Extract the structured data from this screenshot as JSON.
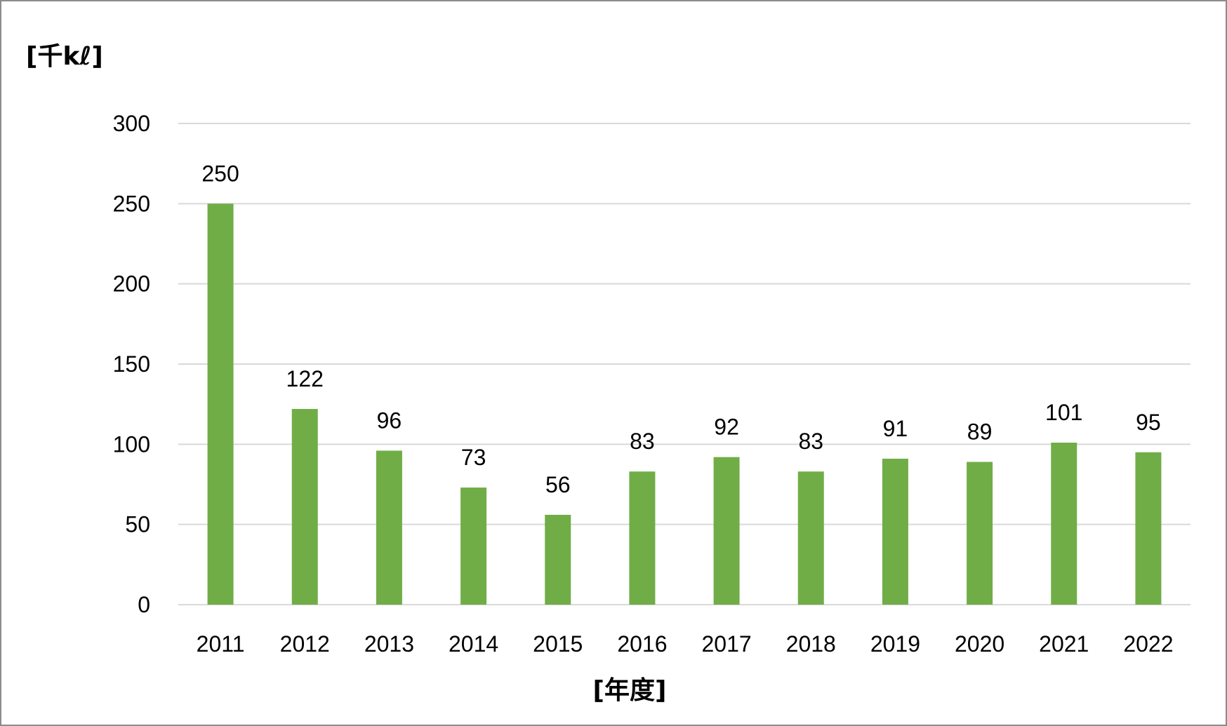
{
  "chart_data": {
    "type": "bar",
    "categories": [
      "2011",
      "2012",
      "2013",
      "2014",
      "2015",
      "2016",
      "2017",
      "2018",
      "2019",
      "2020",
      "2021",
      "2022"
    ],
    "values": [
      250,
      122,
      96,
      73,
      56,
      83,
      92,
      83,
      91,
      89,
      101,
      95
    ],
    "data_labels": [
      "250",
      "122",
      "96",
      "73",
      "56",
      "83",
      "92",
      "83",
      "91",
      "89",
      "101",
      "95"
    ],
    "title": "",
    "xlabel": "[年度]",
    "ylabel": "[千kℓ]",
    "ylim": [
      0,
      300
    ],
    "yticks": [
      "0",
      "50",
      "100",
      "150",
      "200",
      "250",
      "300"
    ],
    "grid": true,
    "legend": "none",
    "bar_color": "#70AD47",
    "grid_color": "#D9D9D9"
  }
}
